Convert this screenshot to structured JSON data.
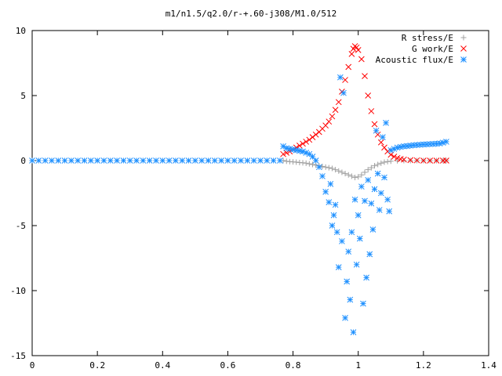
{
  "chart_data": {
    "type": "scatter",
    "title": "m1/n1.5/q2.0/r-+.60-j308/M1.0/512",
    "xlabel": "",
    "ylabel": "",
    "xlim": [
      0,
      1.4
    ],
    "ylim": [
      -15,
      10
    ],
    "x_ticks": [
      "0",
      "0.2",
      "0.4",
      "0.6",
      "0.8",
      "1",
      "1.2",
      "1.4"
    ],
    "y_ticks": [
      "10",
      "5",
      "0",
      "-5",
      "-10",
      "-15"
    ],
    "grid": false,
    "legend_position": "top-right",
    "series": [
      {
        "name": "R stress/E",
        "marker": "plus",
        "color": "#a0a0a0",
        "points": [
          [
            0.77,
            0.0
          ],
          [
            0.78,
            -0.05
          ],
          [
            0.79,
            -0.08
          ],
          [
            0.8,
            -0.1
          ],
          [
            0.81,
            -0.12
          ],
          [
            0.82,
            -0.15
          ],
          [
            0.83,
            -0.17
          ],
          [
            0.84,
            -0.2
          ],
          [
            0.85,
            -0.25
          ],
          [
            0.86,
            -0.3
          ],
          [
            0.87,
            -0.35
          ],
          [
            0.88,
            -0.4
          ],
          [
            0.89,
            -0.45
          ],
          [
            0.9,
            -0.5
          ],
          [
            0.91,
            -0.55
          ],
          [
            0.92,
            -0.6
          ],
          [
            0.93,
            -0.7
          ],
          [
            0.94,
            -0.8
          ],
          [
            0.95,
            -0.9
          ],
          [
            0.96,
            -1.0
          ],
          [
            0.97,
            -1.1
          ],
          [
            0.98,
            -1.2
          ],
          [
            0.99,
            -1.3
          ],
          [
            1.0,
            -1.25
          ],
          [
            1.01,
            -1.1
          ],
          [
            1.02,
            -0.9
          ],
          [
            1.03,
            -0.7
          ],
          [
            1.04,
            -0.55
          ],
          [
            1.05,
            -0.4
          ],
          [
            1.06,
            -0.3
          ],
          [
            1.07,
            -0.2
          ],
          [
            1.08,
            -0.12
          ],
          [
            1.09,
            -0.08
          ],
          [
            1.1,
            -0.05
          ],
          [
            1.12,
            -0.02
          ],
          [
            1.14,
            0.0
          ],
          [
            1.16,
            0.0
          ],
          [
            1.18,
            0.0
          ],
          [
            1.2,
            0.0
          ],
          [
            1.22,
            0.0
          ],
          [
            1.24,
            0.0
          ],
          [
            1.26,
            0.0
          ],
          [
            1.27,
            0.0
          ]
        ]
      },
      {
        "name": "G work/E",
        "marker": "cross",
        "color": "#ff0000",
        "points": [
          [
            0.77,
            0.5
          ],
          [
            0.78,
            0.6
          ],
          [
            0.79,
            0.7
          ],
          [
            0.8,
            0.85
          ],
          [
            0.81,
            1.0
          ],
          [
            0.82,
            1.15
          ],
          [
            0.83,
            1.3
          ],
          [
            0.84,
            1.45
          ],
          [
            0.85,
            1.6
          ],
          [
            0.86,
            1.8
          ],
          [
            0.87,
            2.0
          ],
          [
            0.88,
            2.2
          ],
          [
            0.89,
            2.45
          ],
          [
            0.9,
            2.7
          ],
          [
            0.91,
            3.0
          ],
          [
            0.92,
            3.4
          ],
          [
            0.93,
            3.9
          ],
          [
            0.94,
            4.5
          ],
          [
            0.95,
            5.3
          ],
          [
            0.96,
            6.2
          ],
          [
            0.97,
            7.2
          ],
          [
            0.98,
            8.2
          ],
          [
            0.985,
            8.6
          ],
          [
            0.99,
            8.8
          ],
          [
            0.995,
            8.7
          ],
          [
            1.0,
            8.5
          ],
          [
            1.01,
            7.8
          ],
          [
            1.02,
            6.5
          ],
          [
            1.03,
            5.0
          ],
          [
            1.04,
            3.8
          ],
          [
            1.05,
            2.8
          ],
          [
            1.06,
            2.0
          ],
          [
            1.07,
            1.4
          ],
          [
            1.08,
            1.0
          ],
          [
            1.09,
            0.7
          ],
          [
            1.1,
            0.45
          ],
          [
            1.11,
            0.3
          ],
          [
            1.12,
            0.2
          ],
          [
            1.13,
            0.12
          ],
          [
            1.14,
            0.08
          ],
          [
            1.16,
            0.04
          ],
          [
            1.18,
            0.02
          ],
          [
            1.2,
            0.0
          ],
          [
            1.22,
            0.0
          ],
          [
            1.24,
            0.0
          ],
          [
            1.26,
            0.0
          ],
          [
            1.27,
            0.0
          ]
        ]
      },
      {
        "name": "Acoustic flux/E",
        "marker": "star",
        "color": "#1e90ff",
        "points": [
          [
            0.0,
            0.0
          ],
          [
            0.02,
            0.0
          ],
          [
            0.04,
            0.0
          ],
          [
            0.06,
            0.0
          ],
          [
            0.08,
            0.0
          ],
          [
            0.1,
            0.0
          ],
          [
            0.12,
            0.0
          ],
          [
            0.14,
            0.0
          ],
          [
            0.16,
            0.0
          ],
          [
            0.18,
            0.0
          ],
          [
            0.2,
            0.0
          ],
          [
            0.22,
            0.0
          ],
          [
            0.24,
            0.0
          ],
          [
            0.26,
            0.0
          ],
          [
            0.28,
            0.0
          ],
          [
            0.3,
            0.0
          ],
          [
            0.32,
            0.0
          ],
          [
            0.34,
            0.0
          ],
          [
            0.36,
            0.0
          ],
          [
            0.38,
            0.0
          ],
          [
            0.4,
            0.0
          ],
          [
            0.42,
            0.0
          ],
          [
            0.44,
            0.0
          ],
          [
            0.46,
            0.0
          ],
          [
            0.48,
            0.0
          ],
          [
            0.5,
            0.0
          ],
          [
            0.52,
            0.0
          ],
          [
            0.54,
            0.0
          ],
          [
            0.56,
            0.0
          ],
          [
            0.58,
            0.0
          ],
          [
            0.6,
            0.0
          ],
          [
            0.62,
            0.0
          ],
          [
            0.64,
            0.0
          ],
          [
            0.66,
            0.0
          ],
          [
            0.68,
            0.0
          ],
          [
            0.7,
            0.0
          ],
          [
            0.72,
            0.0
          ],
          [
            0.74,
            0.0
          ],
          [
            0.76,
            0.0
          ],
          [
            0.77,
            1.1
          ],
          [
            0.78,
            0.95
          ],
          [
            0.79,
            0.9
          ],
          [
            0.8,
            0.85
          ],
          [
            0.81,
            0.8
          ],
          [
            0.82,
            0.75
          ],
          [
            0.83,
            0.7
          ],
          [
            0.84,
            0.6
          ],
          [
            0.85,
            0.5
          ],
          [
            0.86,
            0.3
          ],
          [
            0.87,
            0.0
          ],
          [
            0.88,
            -0.5
          ],
          [
            0.89,
            -1.2
          ],
          [
            0.9,
            -2.4
          ],
          [
            0.91,
            -3.2
          ],
          [
            0.915,
            -1.8
          ],
          [
            0.92,
            -5.0
          ],
          [
            0.925,
            -4.2
          ],
          [
            0.93,
            -3.4
          ],
          [
            0.935,
            -5.5
          ],
          [
            0.94,
            -8.2
          ],
          [
            0.945,
            6.4
          ],
          [
            0.95,
            -6.2
          ],
          [
            0.955,
            5.2
          ],
          [
            0.96,
            -12.1
          ],
          [
            0.965,
            -9.3
          ],
          [
            0.97,
            -7.0
          ],
          [
            0.975,
            -10.7
          ],
          [
            0.98,
            -5.5
          ],
          [
            0.985,
            -13.2
          ],
          [
            0.99,
            -3.0
          ],
          [
            0.995,
            -8.0
          ],
          [
            1.0,
            -4.2
          ],
          [
            1.005,
            -6.0
          ],
          [
            1.01,
            -2.0
          ],
          [
            1.015,
            -11.0
          ],
          [
            1.02,
            -3.1
          ],
          [
            1.025,
            -9.0
          ],
          [
            1.03,
            -1.5
          ],
          [
            1.035,
            -7.2
          ],
          [
            1.04,
            -3.3
          ],
          [
            1.045,
            -5.3
          ],
          [
            1.05,
            -2.2
          ],
          [
            1.055,
            2.3
          ],
          [
            1.06,
            -1.0
          ],
          [
            1.065,
            -3.8
          ],
          [
            1.07,
            -2.5
          ],
          [
            1.075,
            1.8
          ],
          [
            1.08,
            -1.3
          ],
          [
            1.085,
            2.9
          ],
          [
            1.09,
            -3.0
          ],
          [
            1.095,
            -3.9
          ],
          [
            1.1,
            0.8
          ],
          [
            1.11,
            0.9
          ],
          [
            1.12,
            1.0
          ],
          [
            1.13,
            1.05
          ],
          [
            1.14,
            1.1
          ],
          [
            1.15,
            1.12
          ],
          [
            1.16,
            1.15
          ],
          [
            1.17,
            1.18
          ],
          [
            1.18,
            1.2
          ],
          [
            1.19,
            1.22
          ],
          [
            1.2,
            1.24
          ],
          [
            1.21,
            1.25
          ],
          [
            1.22,
            1.27
          ],
          [
            1.23,
            1.28
          ],
          [
            1.24,
            1.3
          ],
          [
            1.25,
            1.32
          ],
          [
            1.26,
            1.38
          ],
          [
            1.27,
            1.45
          ]
        ]
      }
    ]
  }
}
